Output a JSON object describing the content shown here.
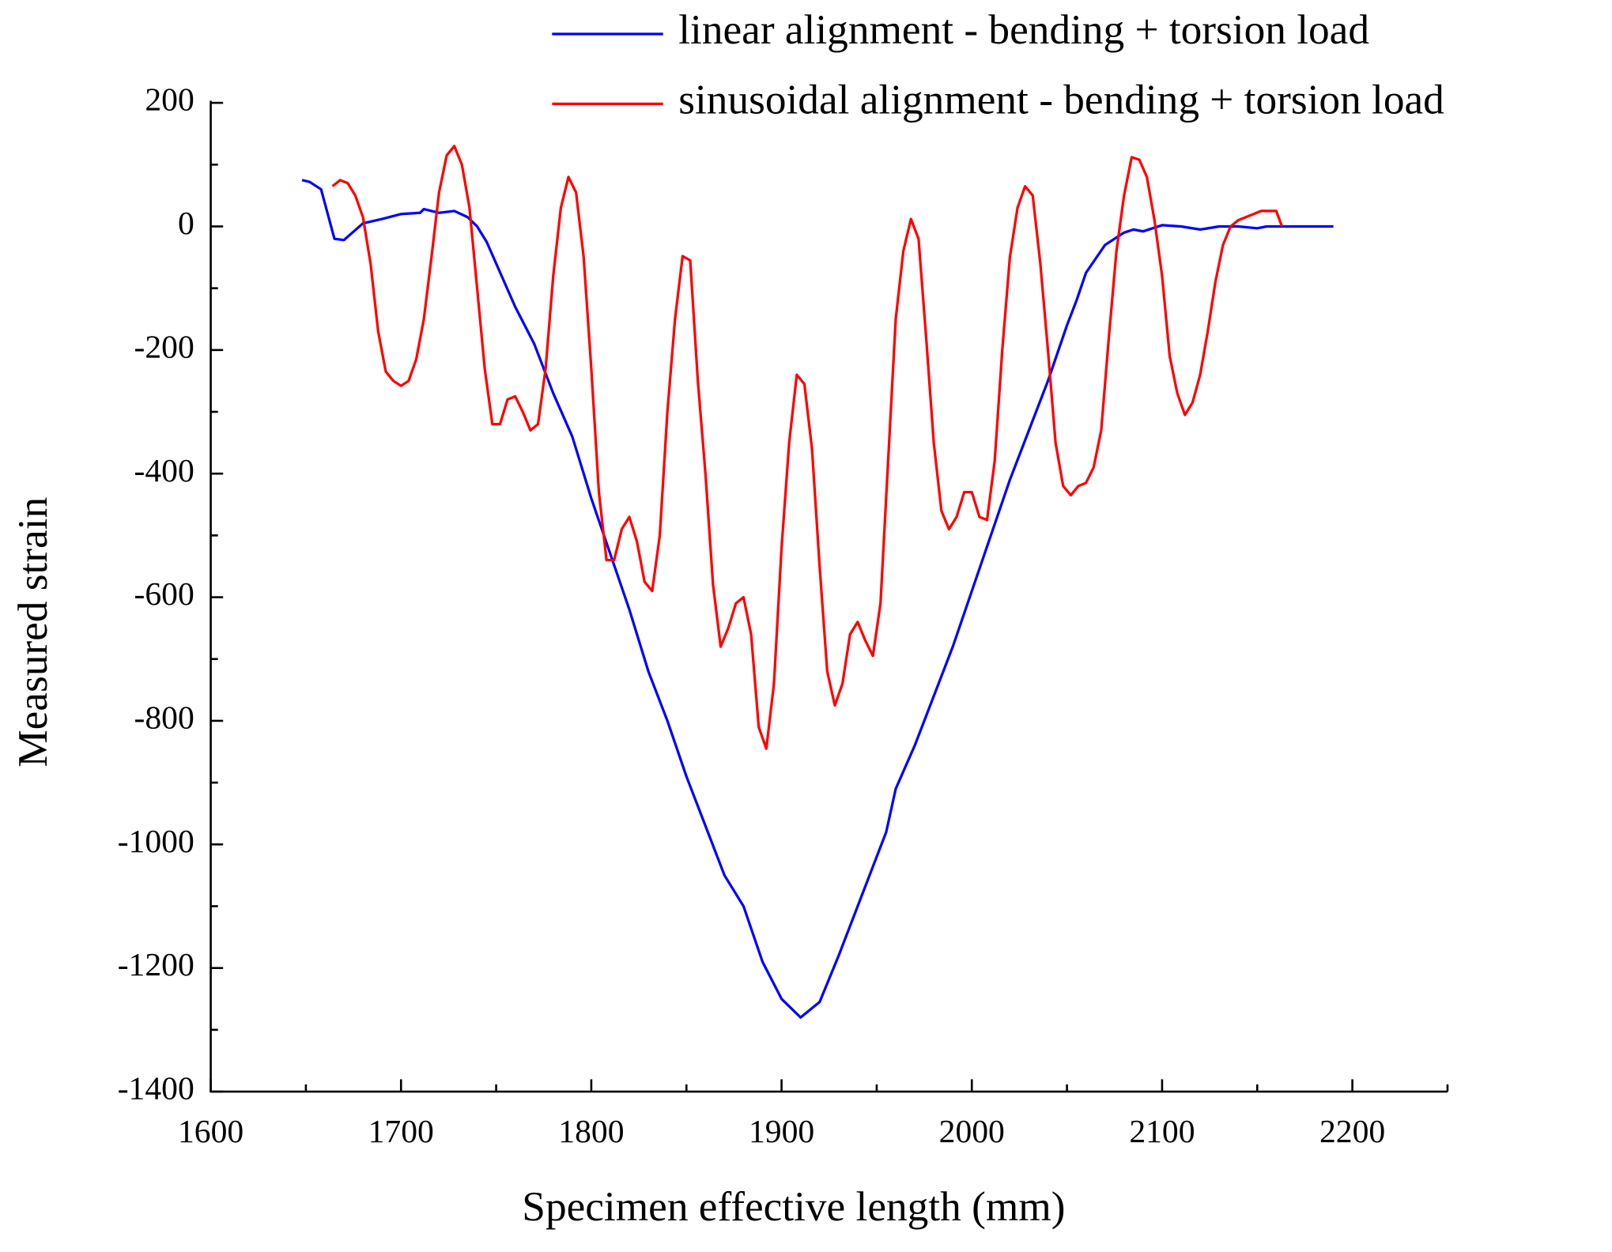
{
  "chart_data": {
    "type": "line",
    "x_label": "Specimen effective length (mm)",
    "y_label": "Measured strain",
    "xlim": [
      1600,
      2250
    ],
    "xticks": [
      1600,
      1700,
      1800,
      1900,
      2000,
      2100,
      2200
    ],
    "ylim": [
      -1400,
      200
    ],
    "yticks": [
      -1400,
      -1200,
      -1000,
      -800,
      -600,
      -400,
      -200,
      0,
      200
    ],
    "grid": false,
    "legend": "upper right",
    "series": [
      {
        "name": "linear alignment - bending + torsion load",
        "color": "#0000ff",
        "x": [
          1648,
          1652,
          1658,
          1665,
          1670,
          1680,
          1690,
          1700,
          1710,
          1712,
          1720,
          1728,
          1735,
          1740,
          1745,
          1750,
          1760,
          1770,
          1780,
          1790,
          1800,
          1810,
          1820,
          1830,
          1840,
          1850,
          1860,
          1870,
          1880,
          1890,
          1900,
          1910,
          1920,
          1930,
          1940,
          1950,
          1955,
          1960,
          1970,
          1980,
          1990,
          2000,
          2010,
          2020,
          2030,
          2040,
          2050,
          2055,
          2060,
          2070,
          2080,
          2085,
          2090,
          2100,
          2110,
          2120,
          2130,
          2140,
          2150,
          2155,
          2170,
          2190
        ],
        "values": [
          75,
          72,
          60,
          -20,
          -22,
          5,
          12,
          20,
          22,
          28,
          22,
          25,
          15,
          0,
          -25,
          -60,
          -130,
          -190,
          -270,
          -340,
          -440,
          -530,
          -620,
          -720,
          -800,
          -890,
          -970,
          -1050,
          -1100,
          -1190,
          -1250,
          -1280,
          -1255,
          -1180,
          -1100,
          -1020,
          -980,
          -910,
          -840,
          -760,
          -680,
          -590,
          -500,
          -410,
          -330,
          -250,
          -160,
          -120,
          -75,
          -30,
          -10,
          -5,
          -8,
          2,
          0,
          -5,
          0,
          0,
          -3,
          0,
          0,
          0
        ]
      },
      {
        "name": "sinusoidal alignment - bending + torsion load",
        "color": "#ff0000",
        "x": [
          1664,
          1668,
          1672,
          1676,
          1680,
          1684,
          1688,
          1692,
          1696,
          1700,
          1704,
          1708,
          1712,
          1716,
          1720,
          1724,
          1728,
          1732,
          1736,
          1740,
          1744,
          1748,
          1752,
          1756,
          1760,
          1764,
          1768,
          1772,
          1776,
          1780,
          1784,
          1788,
          1792,
          1796,
          1800,
          1804,
          1808,
          1812,
          1816,
          1820,
          1824,
          1828,
          1832,
          1836,
          1840,
          1844,
          1848,
          1852,
          1856,
          1860,
          1864,
          1868,
          1872,
          1876,
          1880,
          1884,
          1888,
          1892,
          1896,
          1900,
          1904,
          1908,
          1912,
          1916,
          1920,
          1924,
          1928,
          1932,
          1936,
          1940,
          1944,
          1948,
          1952,
          1956,
          1960,
          1964,
          1968,
          1972,
          1976,
          1980,
          1984,
          1988,
          1992,
          1996,
          2000,
          2004,
          2008,
          2012,
          2016,
          2020,
          2024,
          2028,
          2032,
          2036,
          2040,
          2044,
          2048,
          2052,
          2056,
          2060,
          2064,
          2068,
          2072,
          2076,
          2080,
          2084,
          2088,
          2092,
          2096,
          2100,
          2104,
          2108,
          2112,
          2116,
          2120,
          2124,
          2128,
          2132,
          2136,
          2140,
          2144,
          2148,
          2152,
          2156,
          2160,
          2163
        ],
        "values": [
          65,
          75,
          70,
          50,
          15,
          -60,
          -170,
          -235,
          -250,
          -258,
          -250,
          -215,
          -150,
          -50,
          55,
          115,
          130,
          100,
          30,
          -100,
          -230,
          -320,
          -320,
          -280,
          -275,
          -300,
          -330,
          -320,
          -230,
          -80,
          30,
          80,
          55,
          -50,
          -230,
          -430,
          -540,
          -540,
          -490,
          -470,
          -510,
          -575,
          -590,
          -500,
          -300,
          -150,
          -48,
          -55,
          -250,
          -400,
          -580,
          -680,
          -650,
          -610,
          -600,
          -660,
          -810,
          -845,
          -740,
          -520,
          -350,
          -240,
          -255,
          -360,
          -550,
          -720,
          -775,
          -740,
          -660,
          -640,
          -670,
          -695,
          -610,
          -380,
          -150,
          -40,
          12,
          -20,
          -180,
          -350,
          -460,
          -490,
          -470,
          -430,
          -430,
          -470,
          -475,
          -380,
          -200,
          -50,
          30,
          65,
          50,
          -60,
          -200,
          -350,
          -420,
          -435,
          -420,
          -415,
          -390,
          -330,
          -180,
          -40,
          50,
          112,
          108,
          80,
          10,
          -80,
          -210,
          -270,
          -305,
          -285,
          -240,
          -170,
          -90,
          -30,
          0,
          10,
          15,
          20,
          25,
          25,
          25,
          0
        ]
      }
    ]
  }
}
